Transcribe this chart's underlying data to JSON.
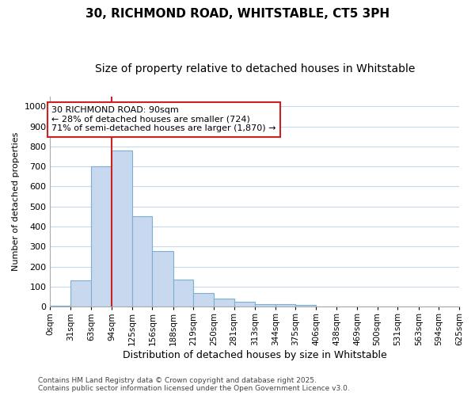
{
  "title_line1": "30, RICHMOND ROAD, WHITSTABLE, CT5 3PH",
  "title_line2": "Size of property relative to detached houses in Whitstable",
  "xlabel": "Distribution of detached houses by size in Whitstable",
  "ylabel": "Number of detached properties",
  "bins": [
    0,
    31,
    63,
    94,
    125,
    156,
    188,
    219,
    250,
    281,
    313,
    344,
    375,
    406,
    438,
    469,
    500,
    531,
    563,
    594,
    625
  ],
  "counts": [
    5,
    130,
    700,
    780,
    450,
    278,
    135,
    68,
    40,
    25,
    15,
    15,
    8,
    0,
    0,
    0,
    0,
    0,
    0,
    0
  ],
  "bar_color": "#c8d8ef",
  "bar_edgecolor": "#7bafd4",
  "vline_x": 94,
  "vline_color": "#cc2222",
  "annotation_text": "30 RICHMOND ROAD: 90sqm\n← 28% of detached houses are smaller (724)\n71% of semi-detached houses are larger (1,870) →",
  "annotation_box_facecolor": "#ffffff",
  "annotation_box_edgecolor": "#cc2222",
  "ylim": [
    0,
    1050
  ],
  "yticks": [
    0,
    100,
    200,
    300,
    400,
    500,
    600,
    700,
    800,
    900,
    1000
  ],
  "tick_labels": [
    "0sqm",
    "31sqm",
    "63sqm",
    "94sqm",
    "125sqm",
    "156sqm",
    "188sqm",
    "219sqm",
    "250sqm",
    "281sqm",
    "313sqm",
    "344sqm",
    "375sqm",
    "406sqm",
    "438sqm",
    "469sqm",
    "500sqm",
    "531sqm",
    "563sqm",
    "594sqm",
    "625sqm"
  ],
  "footer_line1": "Contains HM Land Registry data © Crown copyright and database right 2025.",
  "footer_line2": "Contains public sector information licensed under the Open Government Licence v3.0.",
  "fig_facecolor": "#ffffff",
  "axes_facecolor": "#ffffff",
  "grid_color": "#c5d8f0",
  "title1_fontsize": 11,
  "title2_fontsize": 10,
  "xlabel_fontsize": 9,
  "ylabel_fontsize": 8,
  "xtick_fontsize": 7.5,
  "ytick_fontsize": 8,
  "footer_fontsize": 6.5,
  "annotation_fontsize": 8
}
